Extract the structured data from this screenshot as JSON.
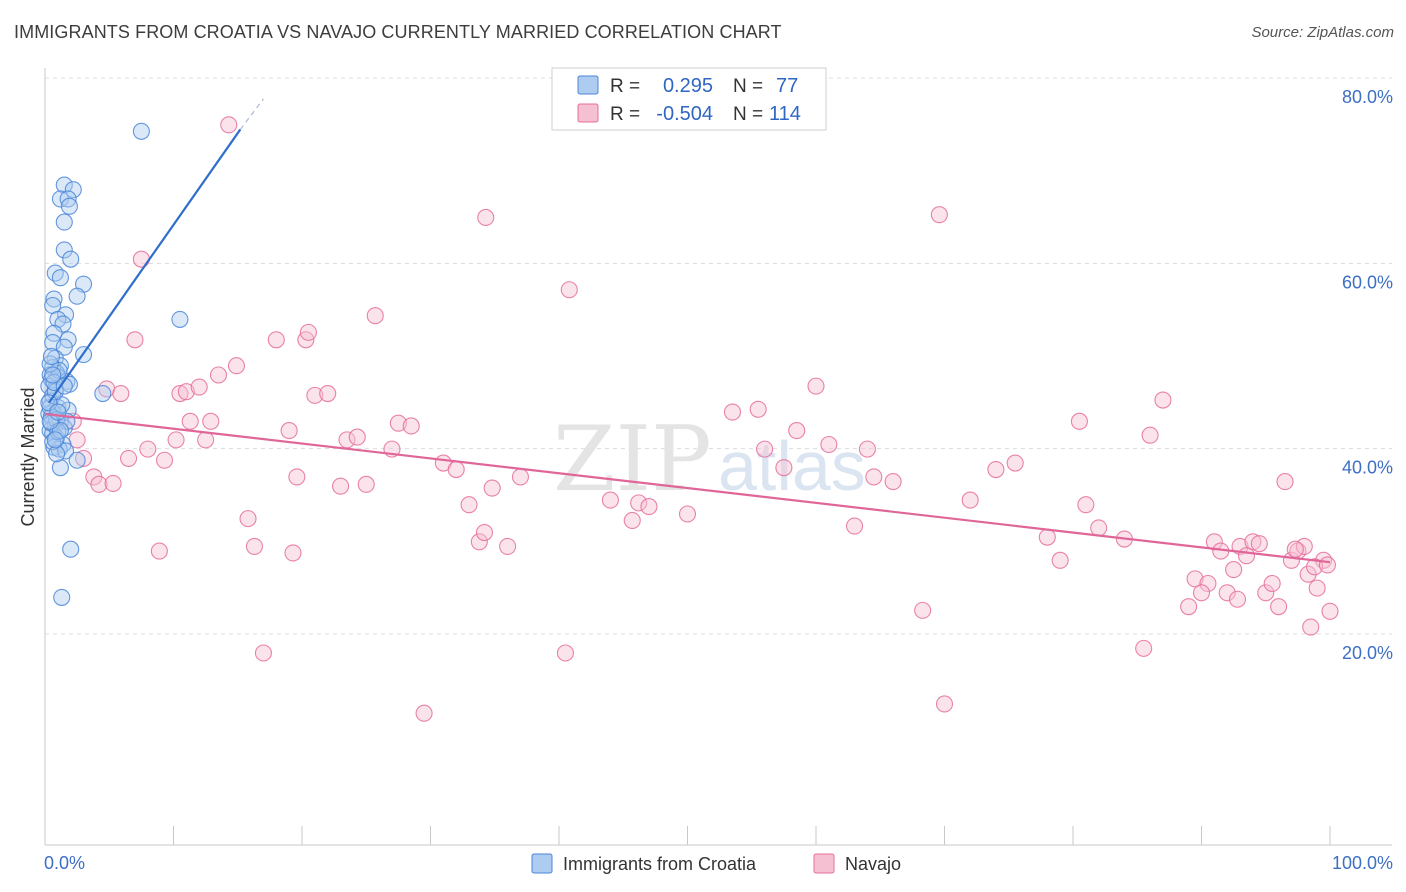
{
  "title": "IMMIGRANTS FROM CROATIA VS NAVAJO CURRENTLY MARRIED CORRELATION CHART",
  "source": "Source: ZipAtlas.com",
  "colors": {
    "blue": "#4a86d8",
    "blue_fill": "#aecbf0",
    "blue_line": "#2f6fcb",
    "pink": "#e56d9b",
    "pink_fill": "#f6c0d3",
    "pink_line": "#e0669a",
    "grid": "#dcdcdc",
    "tick_text": "#3d6fc4"
  },
  "chart_data": {
    "type": "scatter",
    "title": "IMMIGRANTS FROM CROATIA VS NAVAJO CURRENTLY MARRIED CORRELATION CHART",
    "xlabel": "",
    "ylabel": "Currently Married",
    "xlim": [
      0,
      100
    ],
    "ylim": [
      0,
      82
    ],
    "x_tick_labels": [
      "0.0%",
      "100.0%"
    ],
    "y_ticks": [
      20,
      40,
      60,
      80
    ],
    "y_tick_labels": [
      "20.0%",
      "40.0%",
      "60.0%",
      "80.0%"
    ],
    "watermark": {
      "zip": "ZIP",
      "atlas": "atlas"
    },
    "legend": {
      "rows": [
        {
          "r_label": "R =",
          "r_value": "0.295",
          "n_label": "N =",
          "n_value": "77"
        },
        {
          "r_label": "R =",
          "r_value": "-0.504",
          "n_label": "N =",
          "n_value": "114"
        }
      ]
    },
    "series": [
      {
        "name": "Immigrants from Croatia",
        "color": "#4a86d8",
        "trend": {
          "x0": 0.3,
          "y0": 47.0,
          "x1": 15.2,
          "y1": 76.5,
          "dash_x1": 17.0,
          "dash_y1": 79.8
        },
        "points": [
          [
            7.5,
            76.3
          ],
          [
            1.5,
            70.5
          ],
          [
            2.2,
            70.0
          ],
          [
            1.2,
            69.0
          ],
          [
            1.8,
            69.0
          ],
          [
            1.9,
            68.2
          ],
          [
            1.5,
            66.5
          ],
          [
            1.5,
            63.5
          ],
          [
            2.0,
            62.5
          ],
          [
            0.8,
            61.0
          ],
          [
            1.2,
            60.5
          ],
          [
            3.0,
            59.8
          ],
          [
            2.5,
            58.5
          ],
          [
            0.7,
            58.2
          ],
          [
            0.6,
            57.5
          ],
          [
            1.6,
            56.5
          ],
          [
            1.0,
            56.0
          ],
          [
            10.5,
            56.0
          ],
          [
            1.4,
            55.5
          ],
          [
            0.7,
            54.5
          ],
          [
            0.6,
            53.5
          ],
          [
            1.8,
            53.8
          ],
          [
            1.5,
            53.0
          ],
          [
            3.0,
            52.2
          ],
          [
            0.8,
            51.8
          ],
          [
            1.2,
            51.0
          ],
          [
            0.6,
            50.8
          ],
          [
            0.9,
            50.2
          ],
          [
            0.4,
            50.0
          ],
          [
            1.0,
            49.8
          ],
          [
            0.5,
            49.5
          ],
          [
            1.7,
            49.3
          ],
          [
            1.9,
            49.0
          ],
          [
            0.3,
            48.8
          ],
          [
            0.8,
            48.5
          ],
          [
            4.5,
            48.0
          ],
          [
            0.4,
            47.2
          ],
          [
            1.0,
            46.5
          ],
          [
            0.6,
            46.0
          ],
          [
            1.8,
            46.2
          ],
          [
            0.3,
            45.8
          ],
          [
            0.5,
            45.5
          ],
          [
            1.2,
            45.0
          ],
          [
            0.8,
            44.6
          ],
          [
            1.5,
            44.3
          ],
          [
            0.4,
            44.0
          ],
          [
            0.6,
            43.7
          ],
          [
            0.9,
            43.2
          ],
          [
            1.4,
            42.5
          ],
          [
            0.7,
            42.2
          ],
          [
            1.1,
            42.0
          ],
          [
            1.6,
            41.8
          ],
          [
            2.5,
            40.8
          ],
          [
            1.2,
            40.0
          ],
          [
            0.4,
            46.5
          ],
          [
            0.6,
            47.8
          ],
          [
            0.9,
            45.2
          ],
          [
            1.3,
            46.8
          ],
          [
            0.5,
            44.8
          ],
          [
            0.8,
            48.2
          ],
          [
            1.1,
            50.5
          ],
          [
            0.4,
            51.2
          ],
          [
            1.7,
            45.0
          ],
          [
            0.6,
            42.8
          ],
          [
            1.0,
            43.9
          ],
          [
            2.0,
            31.2
          ],
          [
            1.3,
            26.0
          ],
          [
            0.7,
            49.2
          ],
          [
            0.3,
            47.0
          ],
          [
            0.5,
            52.0
          ],
          [
            1.2,
            44.0
          ],
          [
            0.9,
            41.5
          ],
          [
            0.4,
            45.0
          ],
          [
            1.5,
            48.8
          ],
          [
            0.6,
            50.0
          ],
          [
            1.0,
            46.0
          ],
          [
            0.8,
            43.0
          ]
        ]
      },
      {
        "name": "Navajo",
        "color": "#e56d9b",
        "trend": {
          "x0": 0,
          "y0": 45.8,
          "x1": 100,
          "y1": 29.8
        },
        "points": [
          [
            14.3,
            77.0
          ],
          [
            34.3,
            67.0
          ],
          [
            69.6,
            67.3
          ],
          [
            7.5,
            62.5
          ],
          [
            40.8,
            59.2
          ],
          [
            25.7,
            56.4
          ],
          [
            20.3,
            53.8
          ],
          [
            7.0,
            53.8
          ],
          [
            2.2,
            45.0
          ],
          [
            2.5,
            43.0
          ],
          [
            3.0,
            41.0
          ],
          [
            3.8,
            39.0
          ],
          [
            4.2,
            38.2
          ],
          [
            5.3,
            38.3
          ],
          [
            4.8,
            48.5
          ],
          [
            5.9,
            48.0
          ],
          [
            6.5,
            41.0
          ],
          [
            8.0,
            42.0
          ],
          [
            8.9,
            31.0
          ],
          [
            9.3,
            40.8
          ],
          [
            10.2,
            43.0
          ],
          [
            10.5,
            48.0
          ],
          [
            11.0,
            48.2
          ],
          [
            11.3,
            45.0
          ],
          [
            12.0,
            48.7
          ],
          [
            12.5,
            43.0
          ],
          [
            12.9,
            45.0
          ],
          [
            13.5,
            50.0
          ],
          [
            14.9,
            51.0
          ],
          [
            15.8,
            34.5
          ],
          [
            16.3,
            31.5
          ],
          [
            17.0,
            20.0
          ],
          [
            18.0,
            53.8
          ],
          [
            19.0,
            44.0
          ],
          [
            19.3,
            30.8
          ],
          [
            19.6,
            39.0
          ],
          [
            20.5,
            54.6
          ],
          [
            21.0,
            47.8
          ],
          [
            22.0,
            48.0
          ],
          [
            23.0,
            38.0
          ],
          [
            23.5,
            43.0
          ],
          [
            24.3,
            43.3
          ],
          [
            25.0,
            38.2
          ],
          [
            27.0,
            42.0
          ],
          [
            27.5,
            44.8
          ],
          [
            28.5,
            44.5
          ],
          [
            29.5,
            13.5
          ],
          [
            31.0,
            40.5
          ],
          [
            32.0,
            39.8
          ],
          [
            33.0,
            36.0
          ],
          [
            33.8,
            32.0
          ],
          [
            34.2,
            33.0
          ],
          [
            34.8,
            37.8
          ],
          [
            36.0,
            31.5
          ],
          [
            37.0,
            39.0
          ],
          [
            40.5,
            20.0
          ],
          [
            44.0,
            36.5
          ],
          [
            45.7,
            34.3
          ],
          [
            46.2,
            36.2
          ],
          [
            47.0,
            35.8
          ],
          [
            50.0,
            35.0
          ],
          [
            53.5,
            46.0
          ],
          [
            55.5,
            46.3
          ],
          [
            56.0,
            42.0
          ],
          [
            57.5,
            40.0
          ],
          [
            58.5,
            44.0
          ],
          [
            60.0,
            48.8
          ],
          [
            61.0,
            42.5
          ],
          [
            63.0,
            33.7
          ],
          [
            64.0,
            42.0
          ],
          [
            64.5,
            39.0
          ],
          [
            66.0,
            38.5
          ],
          [
            68.3,
            24.6
          ],
          [
            70.0,
            14.5
          ],
          [
            72.0,
            36.5
          ],
          [
            74.0,
            39.8
          ],
          [
            75.5,
            40.5
          ],
          [
            78.0,
            32.5
          ],
          [
            79.0,
            30.0
          ],
          [
            80.5,
            45.0
          ],
          [
            81.0,
            36.0
          ],
          [
            82.0,
            33.5
          ],
          [
            84.0,
            32.3
          ],
          [
            85.5,
            20.5
          ],
          [
            86.0,
            43.5
          ],
          [
            87.0,
            47.3
          ],
          [
            89.0,
            25.0
          ],
          [
            89.5,
            28.0
          ],
          [
            90.5,
            27.5
          ],
          [
            91.0,
            32.0
          ],
          [
            92.0,
            26.5
          ],
          [
            92.5,
            29.0
          ],
          [
            93.0,
            31.5
          ],
          [
            94.0,
            32.0
          ],
          [
            94.5,
            31.8
          ],
          [
            95.0,
            26.5
          ],
          [
            95.5,
            27.5
          ],
          [
            96.0,
            25.0
          ],
          [
            96.5,
            38.5
          ],
          [
            97.0,
            30.0
          ],
          [
            97.5,
            31.0
          ],
          [
            98.0,
            31.5
          ],
          [
            98.3,
            28.5
          ],
          [
            98.5,
            22.8
          ],
          [
            99.0,
            27.0
          ],
          [
            99.5,
            30.0
          ],
          [
            100.0,
            24.5
          ],
          [
            92.8,
            25.8
          ],
          [
            97.3,
            31.2
          ],
          [
            98.8,
            29.3
          ],
          [
            99.8,
            29.5
          ],
          [
            91.5,
            31.0
          ],
          [
            90.0,
            26.5
          ],
          [
            93.5,
            30.5
          ]
        ]
      }
    ]
  }
}
